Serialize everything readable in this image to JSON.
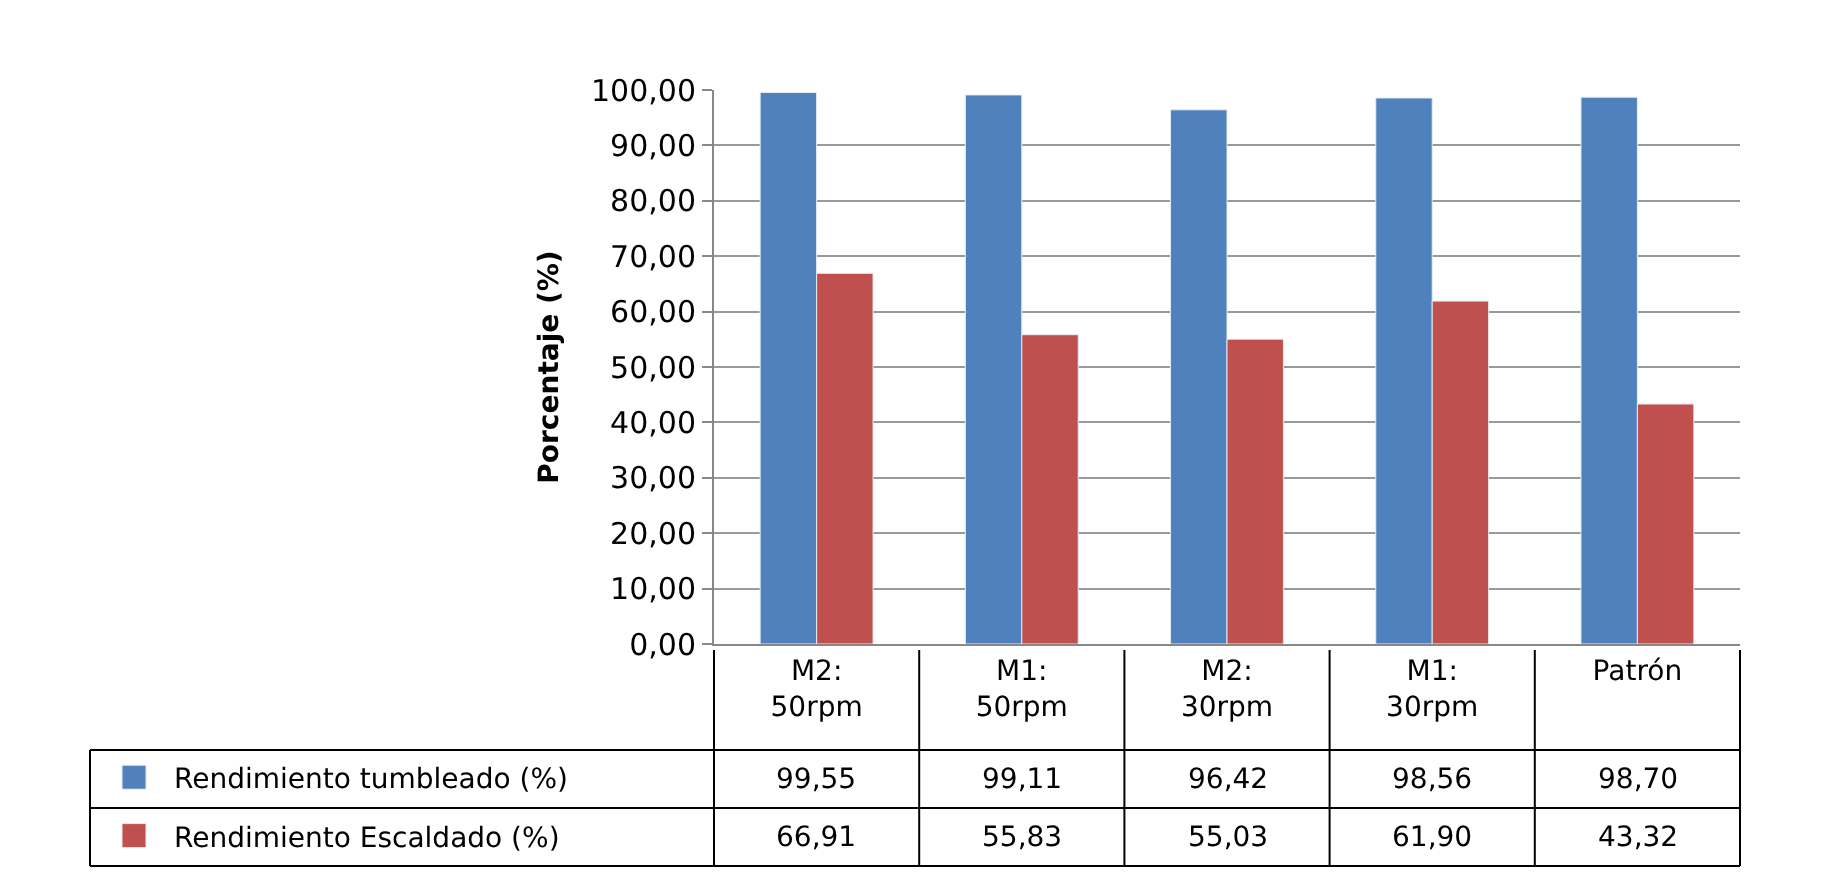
{
  "chart_data": {
    "type": "bar",
    "ylabel": "Porcentaje (%)",
    "categories": [
      "M2: 50rpm",
      "M1: 50rpm",
      "M2: 30rpm",
      "M1: 30rpm",
      "Patrón"
    ],
    "series": [
      {
        "name": "Rendimiento tumbleado (%)",
        "color": "#4f81bd",
        "values": [
          99.55,
          99.11,
          96.42,
          98.56,
          98.7
        ],
        "value_labels": [
          "99,55",
          "99,11",
          "96,42",
          "98,56",
          "98,70"
        ]
      },
      {
        "name": "Rendimiento Escaldado (%)",
        "color": "#c0504d",
        "values": [
          66.91,
          55.83,
          55.03,
          61.9,
          43.32
        ],
        "value_labels": [
          "66,91",
          "55,83",
          "55,03",
          "61,90",
          "43,32"
        ]
      }
    ],
    "ylim": [
      0,
      100
    ],
    "yticks": [
      {
        "value": 0,
        "label": "0,00"
      },
      {
        "value": 10,
        "label": "10,00"
      },
      {
        "value": 20,
        "label": "20,00"
      },
      {
        "value": 30,
        "label": "30,00"
      },
      {
        "value": 40,
        "label": "40,00"
      },
      {
        "value": 50,
        "label": "50,00"
      },
      {
        "value": 60,
        "label": "60,00"
      },
      {
        "value": 70,
        "label": "70,00"
      },
      {
        "value": 80,
        "label": "80,00"
      },
      {
        "value": 90,
        "label": "90,00"
      },
      {
        "value": 100,
        "label": "100,00"
      }
    ],
    "grid": "y",
    "legend": "bottom left"
  }
}
